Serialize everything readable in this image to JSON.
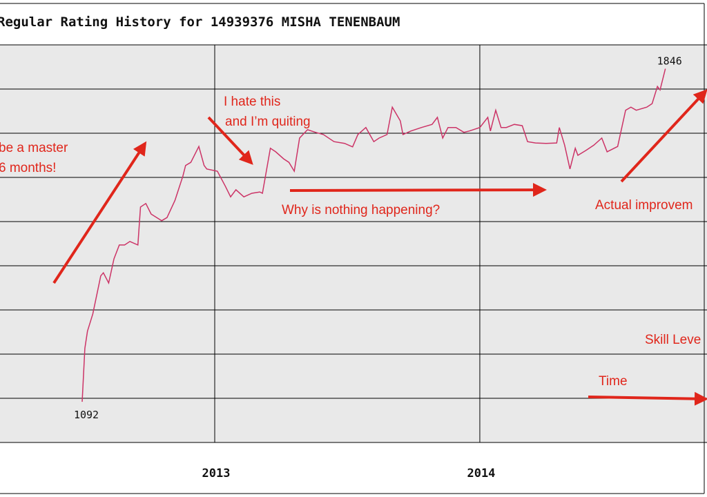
{
  "chart_data": {
    "type": "line",
    "title": "Regular Rating History for 14939376 MISHA TENENBAUM",
    "x": [
      2012.5,
      2012.51,
      2012.52,
      2012.54,
      2012.57,
      2012.58,
      2012.6,
      2012.62,
      2012.64,
      2012.66,
      2012.68,
      2012.71,
      2012.72,
      2012.74,
      2012.76,
      2012.8,
      2012.82,
      2012.85,
      2012.88,
      2012.89,
      2012.91,
      2012.94,
      2012.96,
      2012.97,
      2013.01,
      2013.04,
      2013.06,
      2013.08,
      2013.11,
      2013.14,
      2013.17,
      2013.18,
      2013.21,
      2013.23,
      2013.26,
      2013.28,
      2013.3,
      2013.32,
      2013.35,
      2013.38,
      2013.41,
      2013.45,
      2013.49,
      2013.52,
      2013.54,
      2013.57,
      2013.6,
      2013.62,
      2013.65,
      2013.67,
      2013.7,
      2013.71,
      2013.74,
      2013.78,
      2013.82,
      2013.84,
      2013.86,
      2013.88,
      2013.91,
      2013.94,
      2013.96,
      2014.0,
      2014.03,
      2014.04,
      2014.06,
      2014.08,
      2014.1,
      2014.13,
      2014.16,
      2014.18,
      2014.21,
      2014.25,
      2014.29,
      2014.3,
      2014.32,
      2014.34,
      2014.36,
      2014.37,
      2014.4,
      2014.43,
      2014.46,
      2014.48,
      2014.52,
      2014.55,
      2014.57,
      2014.59,
      2014.63,
      2014.65,
      2014.67,
      2014.68,
      2014.7
    ],
    "series": [
      {
        "color": "#cc3366",
        "values": [
          1092,
          1213,
          1252,
          1291,
          1377,
          1384,
          1361,
          1416,
          1447,
          1447,
          1455,
          1447,
          1533,
          1541,
          1517,
          1502,
          1509,
          1548,
          1603,
          1627,
          1634,
          1670,
          1627,
          1619,
          1614,
          1580,
          1556,
          1572,
          1556,
          1564,
          1567,
          1564,
          1666,
          1658,
          1642,
          1634,
          1614,
          1689,
          1708,
          1702,
          1697,
          1681,
          1677,
          1669,
          1697,
          1713,
          1681,
          1689,
          1697,
          1759,
          1728,
          1697,
          1705,
          1713,
          1720,
          1736,
          1689,
          1713,
          1713,
          1702,
          1705,
          1713,
          1736,
          1705,
          1752,
          1713,
          1713,
          1720,
          1717,
          1681,
          1678,
          1677,
          1678,
          1713,
          1673,
          1619,
          1666,
          1650,
          1661,
          1673,
          1689,
          1658,
          1670,
          1752,
          1759,
          1752,
          1759,
          1767,
          1806,
          1798,
          1846
        ]
      }
    ],
    "xlim": [
      2012.19,
      2014.857
    ],
    "xticks": [
      2013,
      2014
    ],
    "ylim": [
      1000,
      1900
    ],
    "yticks": [
      1000,
      1100,
      1200,
      1300,
      1400,
      1500,
      1600,
      1700,
      1800,
      1900
    ],
    "grid": true,
    "annotations": [
      "be a master",
      "6 months!",
      "I hate this",
      "and I’m quiting",
      "Why is nothing happening?",
      "Actual improvem",
      "Skill Leve",
      "Time"
    ]
  }
}
